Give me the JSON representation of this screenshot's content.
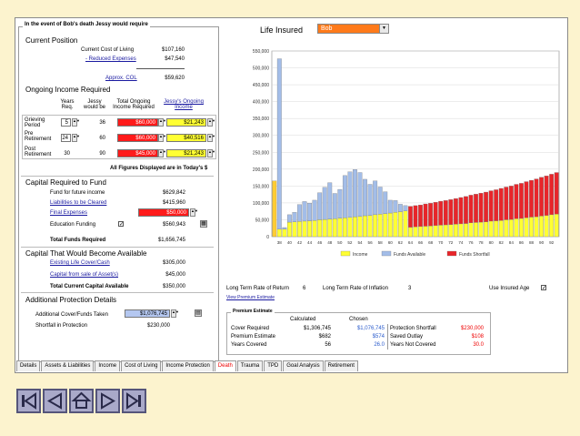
{
  "header": {
    "title": "In the event of Bob's death  Jessy would require",
    "life_insured_label": "Life Insured",
    "life_insured_value": "Bob"
  },
  "current_position": {
    "title": "Current Position",
    "rows": [
      {
        "label": "Current Cost of Living",
        "value": "$107,160"
      },
      {
        "label": "- Reduced Expenses",
        "value": "$47,540"
      },
      {
        "label": "Approx. COL",
        "value": "$59,620"
      }
    ]
  },
  "ongoing": {
    "title": "Ongoing Income Required",
    "headers": [
      "Years Req.",
      "Jessy would be",
      "Total Ongoing Income Required",
      "Jessy's Ongoing Income"
    ],
    "rows": [
      {
        "label": "Grieving Period",
        "years": "5",
        "age": "36",
        "total": "$60,000",
        "jessy": "$21,243"
      },
      {
        "label": "Pre Retirement",
        "years": "24",
        "age": "60",
        "total": "$60,000",
        "jessy": "$40,516"
      },
      {
        "label": "Post Retirement",
        "years": "30",
        "age": "90",
        "total": "$45,000",
        "jessy": "$21,243"
      }
    ],
    "note": "All Figures Displayed are in Today's $"
  },
  "capital_required": {
    "title": "Capital Required to Fund",
    "rows": [
      {
        "label": "Fund for future income",
        "value": "$629,842"
      },
      {
        "label": "Liabilities to be Cleared",
        "value": "$415,960"
      },
      {
        "label": "Final Expenses",
        "value": "$50,000"
      },
      {
        "label": "Education Funding",
        "value": "$560,943"
      }
    ],
    "education_check": "✓",
    "total_label": "Total Funds Required",
    "total_value": "$1,656,745"
  },
  "capital_available": {
    "title": "Capital That Would Become Available",
    "rows": [
      {
        "label": "Existing Life Cover/Cash",
        "value": "$305,000"
      },
      {
        "label": "Capital from sale of Asset(s)",
        "value": "$45,000"
      }
    ],
    "total_label": "Total Current Capital Available",
    "total_value": "$350,000"
  },
  "additional": {
    "title": "Additional Protection Details",
    "cover_label": "Additional Cover/Funds Taken",
    "cover_value": "$1,076,745",
    "shortfall_label": "Shortfall in Protection",
    "shortfall_value": "$230,000"
  },
  "rates": {
    "return_label": "Long Term Rate of Return",
    "return_value": "6",
    "inflation_label": "Long Term Rate of Inflation",
    "inflation_value": "3",
    "insured_age_label": "Use Insured Age",
    "insured_age_check": "✓"
  },
  "premium_link": "View Premium Estimate",
  "premium": {
    "title": "Premium Estimate",
    "col_calc": "Calculated",
    "col_chosen": "Chosen",
    "rows": [
      {
        "label": "Cover Required",
        "calc": "$1,306,745",
        "chosen": "$1,076,745"
      },
      {
        "label": "Premium Estimate",
        "calc": "$682",
        "chosen": "$574"
      },
      {
        "label": "Years Covered",
        "calc": "56",
        "chosen": "26.0"
      }
    ],
    "right_rows": [
      {
        "label": "Protection Shortfall",
        "value": "$230,000"
      },
      {
        "label": "Saved Outlay",
        "value": "$108"
      },
      {
        "label": "Years Not Covered",
        "value": "30.0"
      }
    ]
  },
  "tabs": [
    "Details",
    "Assets & Liabilities",
    "Income",
    "Cost of Living",
    "Income Protection",
    "Death",
    "Trauma",
    "TPD",
    "Goal Analysis",
    "Retirement"
  ],
  "active_tab": "Death",
  "colors": {
    "income": "#ffff33",
    "funds_available": "#a3bde8",
    "funds_shortfall": "#e8252a",
    "first_bar": "#ffcc33",
    "selector": "#ff7a1a"
  },
  "nav_icons": [
    "first-page-icon",
    "previous-page-icon",
    "home-icon",
    "next-page-icon",
    "last-page-icon"
  ],
  "chart_data": {
    "type": "bar",
    "stacked": true,
    "x": [
      37,
      38,
      39,
      40,
      41,
      42,
      43,
      44,
      45,
      46,
      47,
      48,
      49,
      50,
      51,
      52,
      53,
      54,
      55,
      56,
      57,
      58,
      59,
      60,
      61,
      62,
      63,
      64,
      65,
      66,
      67,
      68,
      69,
      70,
      71,
      72,
      73,
      74,
      75,
      76,
      77,
      78,
      79,
      80,
      81,
      82,
      83,
      84,
      85,
      86,
      87,
      88,
      89,
      90,
      91,
      92,
      93
    ],
    "xticks": [
      38,
      40,
      42,
      44,
      46,
      48,
      50,
      52,
      54,
      56,
      58,
      60,
      62,
      64,
      66,
      68,
      70,
      72,
      74,
      76,
      78,
      80,
      82,
      84,
      86,
      88,
      90,
      92
    ],
    "ylim": [
      0,
      550000
    ],
    "yticks": [
      "0",
      "50,000",
      "100,000",
      "150,000",
      "200,000",
      "250,000",
      "300,000",
      "350,000",
      "400,000",
      "450,000",
      "500,000",
      "550,000"
    ],
    "grid": true,
    "legend_position": "bottom",
    "series": [
      {
        "name": "Income",
        "values": [
          165000,
          22000,
          22000,
          43000,
          44000,
          45000,
          46000,
          47000,
          48000,
          50000,
          51000,
          52000,
          53000,
          55000,
          56000,
          57000,
          59000,
          60000,
          62000,
          63000,
          65000,
          67000,
          68000,
          70000,
          72000,
          74000,
          76000,
          28000,
          29000,
          30000,
          31000,
          32000,
          33000,
          34000,
          35000,
          36000,
          37000,
          38000,
          39000,
          41000,
          42000,
          43000,
          44000,
          46000,
          47000,
          48000,
          50000,
          51000,
          53000,
          54000,
          56000,
          58000,
          59000,
          61000,
          63000,
          65000,
          67000
        ]
      },
      {
        "name": "Funds Available",
        "values": [
          0,
          505000,
          5000,
          22000,
          28000,
          50000,
          58000,
          52000,
          60000,
          80000,
          95000,
          108000,
          75000,
          85000,
          125000,
          135000,
          140000,
          130000,
          108000,
          92000,
          100000,
          80000,
          65000,
          38000,
          35000,
          22000,
          16000,
          0,
          0,
          0,
          0,
          0,
          0,
          0,
          0,
          0,
          0,
          0,
          0,
          0,
          0,
          0,
          0,
          0,
          0,
          0,
          0,
          0,
          0,
          0,
          0,
          0,
          0,
          0,
          0,
          0,
          0
        ]
      },
      {
        "name": "Funds Shortfall",
        "values": [
          0,
          0,
          0,
          0,
          0,
          0,
          0,
          0,
          0,
          0,
          0,
          0,
          0,
          0,
          0,
          0,
          0,
          0,
          0,
          0,
          0,
          0,
          0,
          0,
          0,
          0,
          0,
          62000,
          63000,
          64000,
          66000,
          67000,
          69000,
          71000,
          72000,
          74000,
          76000,
          78000,
          80000,
          82000,
          84000,
          86000,
          88000,
          90000,
          92000,
          95000,
          97000,
          99000,
          102000,
          104000,
          107000,
          109000,
          112000,
          115000,
          117000,
          120000,
          123000
        ]
      }
    ]
  }
}
